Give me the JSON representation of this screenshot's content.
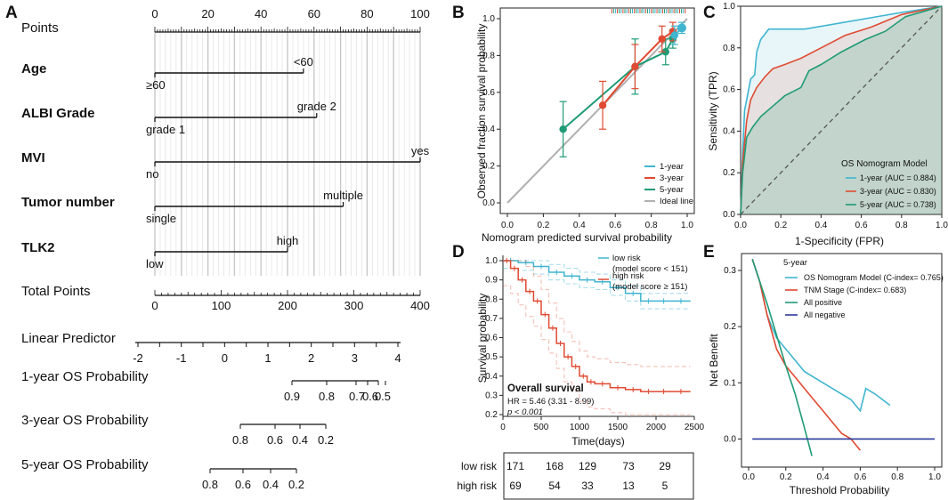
{
  "colors": {
    "cyan": "#3fb5cf",
    "red": "#e04a32",
    "green": "#1f9b76",
    "gray": "#b0b0b0",
    "blue": "#2b3a9c"
  },
  "nomogram": {
    "panel": "A",
    "rows": [
      {
        "name": "Points",
        "bold": false,
        "axis": {
          "min": 0,
          "max": 100,
          "labels": [
            0,
            20,
            40,
            60,
            80,
            100
          ]
        }
      },
      {
        "name": "Age",
        "bold": true,
        "start": 0,
        "end": 56,
        "levels": [
          {
            "text": "<60",
            "at": 56,
            "above": true
          },
          {
            "text": "≥60",
            "at": 0,
            "above": false
          }
        ]
      },
      {
        "name": "ALBI Grade",
        "bold": true,
        "start": 0,
        "end": 61,
        "levels": [
          {
            "text": "grade 2",
            "at": 61,
            "above": true
          },
          {
            "text": "grade 1",
            "at": 0,
            "above": false
          }
        ]
      },
      {
        "name": "MVI",
        "bold": true,
        "start": 0,
        "end": 100,
        "levels": [
          {
            "text": "yes",
            "at": 100,
            "above": true
          },
          {
            "text": "no",
            "at": 0,
            "above": false
          }
        ]
      },
      {
        "name": "Tumor number",
        "bold": true,
        "start": 0,
        "end": 71,
        "levels": [
          {
            "text": "multiple",
            "at": 71,
            "above": true
          },
          {
            "text": "single",
            "at": 0,
            "above": false
          }
        ]
      },
      {
        "name": "TLK2",
        "bold": true,
        "start": 0,
        "end": 50,
        "levels": [
          {
            "text": "high",
            "at": 50,
            "above": true
          },
          {
            "text": "low",
            "at": 0,
            "above": false
          }
        ]
      },
      {
        "name": "Total Points",
        "bold": false,
        "axis": {
          "min": 0,
          "max": 400,
          "labels": [
            0,
            100,
            200,
            300,
            400
          ]
        }
      },
      {
        "name": "Linear Predictor",
        "bold": false,
        "axis": {
          "min": -2,
          "max": 4,
          "labels": [
            -2,
            -1,
            0,
            1,
            2,
            3,
            4
          ]
        }
      },
      {
        "name": "1-year OS Probability",
        "bold": false,
        "ticks": [
          "0.9",
          "0.8",
          "0.7",
          "0.6",
          "0.5"
        ]
      },
      {
        "name": "3-year OS Probability",
        "bold": false,
        "ticks": [
          "0.8",
          "0.6",
          "0.4",
          "0.2"
        ]
      },
      {
        "name": "5-year OS Probability",
        "bold": false,
        "ticks": [
          "0.8",
          "0.6",
          "0.4",
          "0.2"
        ]
      }
    ]
  },
  "chart_data": [
    {
      "panel": "B",
      "type": "line",
      "title": "",
      "xlabel": "Nomogram predicted survival probability",
      "ylabel": "Observed fraction survival probability",
      "xlim": [
        0,
        1
      ],
      "ylim": [
        0,
        1
      ],
      "ticks": [
        0.0,
        0.2,
        0.4,
        0.6,
        0.8,
        1.0
      ],
      "series": [
        {
          "name": "1-year",
          "x": [
            0.93,
            0.97
          ],
          "y": [
            0.91,
            0.95
          ],
          "err": [
            0.05,
            0.03
          ]
        },
        {
          "name": "3-year",
          "x": [
            0.53,
            0.71,
            0.86,
            0.92
          ],
          "y": [
            0.53,
            0.74,
            0.89,
            0.93
          ],
          "err": [
            0.13,
            0.12,
            0.07,
            0.05
          ]
        },
        {
          "name": "5-year",
          "x": [
            0.31,
            0.71,
            0.88,
            0.92
          ],
          "y": [
            0.4,
            0.74,
            0.82,
            0.89
          ],
          "err": [
            0.15,
            0.15,
            0.07,
            0.05
          ]
        },
        {
          "name": "Ideal line",
          "x": [
            0,
            1
          ],
          "y": [
            0,
            1
          ]
        }
      ],
      "legend": [
        "1-year",
        "3-year",
        "5-year",
        "Ideal line"
      ]
    },
    {
      "panel": "C",
      "type": "line",
      "xlabel": "1-Specificity (FPR)",
      "ylabel": "Sensitivity (TPR)",
      "xlim": [
        0,
        1
      ],
      "ylim": [
        0,
        1
      ],
      "ticks": [
        0.0,
        0.2,
        0.4,
        0.6,
        0.8,
        1.0
      ],
      "legend_title": "OS Nomogram Model",
      "series": [
        {
          "name": "1-year (AUC = 0.884)",
          "x": [
            0,
            0.01,
            0.02,
            0.03,
            0.05,
            0.07,
            0.08,
            0.1,
            0.14,
            0.18,
            0.32,
            0.8,
            1
          ],
          "y": [
            0,
            0.3,
            0.5,
            0.55,
            0.65,
            0.67,
            0.78,
            0.84,
            0.89,
            0.89,
            0.89,
            0.97,
            1
          ]
        },
        {
          "name": "3-year (AUC = 0.830)",
          "x": [
            0,
            0.01,
            0.03,
            0.05,
            0.08,
            0.12,
            0.16,
            0.22,
            0.3,
            0.4,
            0.52,
            0.65,
            0.8,
            1
          ],
          "y": [
            0,
            0.25,
            0.45,
            0.55,
            0.61,
            0.66,
            0.7,
            0.72,
            0.75,
            0.8,
            0.86,
            0.9,
            0.96,
            1
          ]
        },
        {
          "name": "5-year (AUC = 0.738)",
          "x": [
            0,
            0.01,
            0.03,
            0.06,
            0.1,
            0.16,
            0.22,
            0.3,
            0.34,
            0.4,
            0.5,
            0.62,
            0.72,
            0.82,
            1
          ],
          "y": [
            0,
            0.2,
            0.37,
            0.42,
            0.47,
            0.52,
            0.57,
            0.61,
            0.69,
            0.72,
            0.78,
            0.84,
            0.88,
            0.95,
            1
          ]
        }
      ]
    },
    {
      "panel": "D",
      "type": "line",
      "title": "Overall survival",
      "xlabel": "Time(days)",
      "ylabel": "Survival probability",
      "xlim": [
        0,
        2500
      ],
      "ylim": [
        0.2,
        1.0
      ],
      "xticks": [
        0,
        500,
        1000,
        1500,
        2000,
        2500
      ],
      "yticks": [
        0.2,
        0.3,
        0.4,
        0.5,
        0.6,
        0.7,
        0.8,
        0.9,
        1.0
      ],
      "annotations": [
        "HR = 5.46 (3.31 - 8.99)",
        "p < 0.001"
      ],
      "series": [
        {
          "name": "low risk (model score < 151)",
          "x": [
            0,
            200,
            400,
            600,
            800,
            1000,
            1200,
            1400,
            1600,
            1800,
            2000,
            2200,
            2450
          ],
          "y": [
            1,
            0.99,
            0.97,
            0.94,
            0.92,
            0.9,
            0.89,
            0.86,
            0.83,
            0.79,
            0.79,
            0.79,
            0.79
          ]
        },
        {
          "name": "high risk (model score ≥ 151)",
          "x": [
            0,
            100,
            200,
            300,
            400,
            500,
            600,
            700,
            800,
            900,
            1000,
            1100,
            1200,
            1400,
            1600,
            1800,
            2000,
            2200,
            2450
          ],
          "y": [
            1,
            0.96,
            0.9,
            0.84,
            0.79,
            0.72,
            0.65,
            0.57,
            0.5,
            0.45,
            0.4,
            0.37,
            0.36,
            0.34,
            0.33,
            0.32,
            0.32,
            0.32,
            0.32
          ]
        }
      ],
      "risk_table": {
        "rows": [
          {
            "label": "low risk",
            "counts": [
              171,
              168,
              129,
              73,
              29
            ]
          },
          {
            "label": "high risk",
            "counts": [
              69,
              54,
              33,
              13,
              5
            ]
          }
        ]
      }
    },
    {
      "panel": "E",
      "type": "line",
      "title": "5-year",
      "xlabel": "Threshold Probability",
      "ylabel": "Net Benefit",
      "xlim": [
        0,
        1
      ],
      "ylim": [
        -0.05,
        0.33
      ],
      "xticks": [
        0.0,
        0.2,
        0.4,
        0.6,
        0.8,
        1.0
      ],
      "yticks": [
        0.0,
        0.1,
        0.2,
        0.3
      ],
      "series": [
        {
          "name": "OS Nomogram Model (C-index= 0.765)",
          "x": [
            0.02,
            0.06,
            0.1,
            0.15,
            0.2,
            0.25,
            0.3,
            0.35,
            0.4,
            0.45,
            0.5,
            0.55,
            0.6,
            0.63,
            0.68,
            0.76
          ],
          "y": [
            0.32,
            0.28,
            0.22,
            0.18,
            0.16,
            0.14,
            0.12,
            0.11,
            0.1,
            0.09,
            0.08,
            0.07,
            0.05,
            0.09,
            0.08,
            0.06
          ]
        },
        {
          "name": "TNM Stage (C-index= 0.683)",
          "x": [
            0.02,
            0.06,
            0.1,
            0.15,
            0.2,
            0.25,
            0.3,
            0.35,
            0.4,
            0.45,
            0.5,
            0.55,
            0.6
          ],
          "y": [
            0.32,
            0.28,
            0.22,
            0.16,
            0.13,
            0.11,
            0.09,
            0.07,
            0.05,
            0.03,
            0.01,
            0.0,
            -0.02
          ]
        },
        {
          "name": "All positive",
          "x": [
            0.02,
            0.1,
            0.2,
            0.25,
            0.3,
            0.34
          ],
          "y": [
            0.32,
            0.24,
            0.13,
            0.08,
            0.02,
            -0.03
          ]
        },
        {
          "name": "All negative",
          "x": [
            0.02,
            1.0
          ],
          "y": [
            0,
            0
          ]
        }
      ]
    }
  ]
}
